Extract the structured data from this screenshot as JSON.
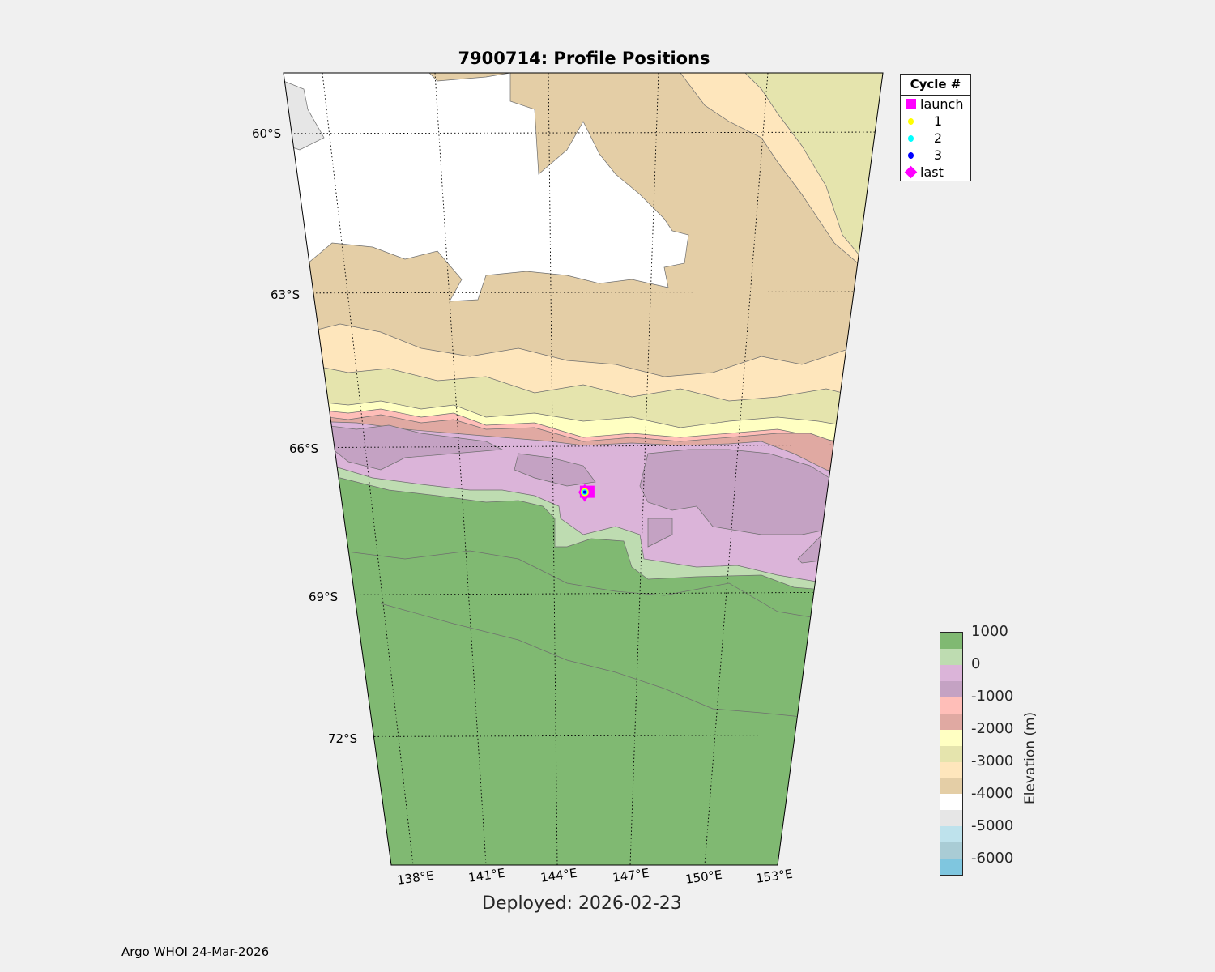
{
  "title": "7900714: Profile Positions",
  "legend": {
    "title": "Cycle #",
    "entries": [
      {
        "label": "launch",
        "symbol": "square",
        "color": "#ff00ff"
      },
      {
        "label": "1",
        "symbol": "circle",
        "color": "#ffff00"
      },
      {
        "label": "2",
        "symbol": "circle",
        "color": "#00ffff"
      },
      {
        "label": "3",
        "symbol": "circle",
        "color": "#0000ff"
      },
      {
        "label": "last",
        "symbol": "diamond",
        "color": "#ff00ff"
      }
    ]
  },
  "lat_labels": [
    "60°S",
    "63°S",
    "66°S",
    "69°S",
    "72°S"
  ],
  "lon_labels": [
    "138°E",
    "141°E",
    "144°E",
    "147°E",
    "150°E",
    "153°E"
  ],
  "profile_position": {
    "lat": -66.9,
    "lon": 145.05
  },
  "colorbar": {
    "label": "Elevation (m)",
    "ticks": [
      "1000",
      "0",
      "-1000",
      "-2000",
      "-3000",
      "-4000",
      "-5000",
      "-6000"
    ],
    "colors": [
      "#80b972",
      "#bedcb1",
      "#dbb4d9",
      "#c4a2c3",
      "#ffbeb8",
      "#e0a9a2",
      "#ffffc2",
      "#e5e4ad",
      "#fee6bc",
      "#e4cea6",
      "#ffffff",
      "#e6e6e6",
      "#bee2ec",
      "#a9ccd5",
      "#7fc6df"
    ]
  },
  "deployed": "Deployed: 2026-02-23",
  "footer": "Argo WHOI 24-Mar-2026"
}
